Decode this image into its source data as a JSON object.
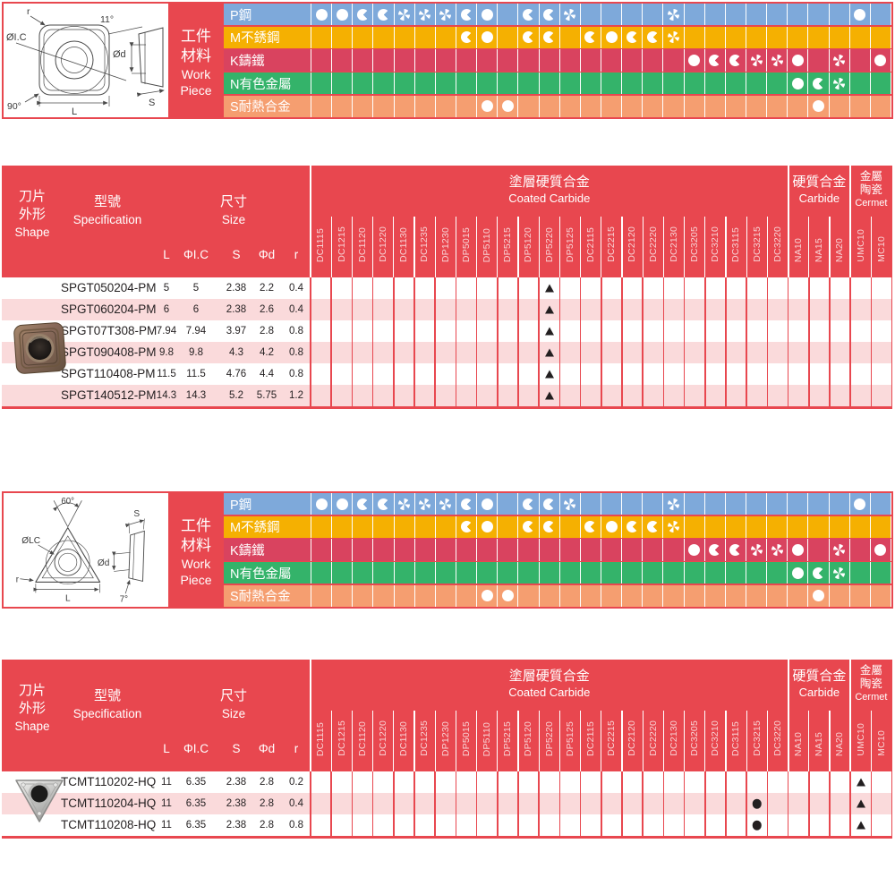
{
  "colors": {
    "red": "#e8474f",
    "row_alt": "#fadadb",
    "mark": "#231f20",
    "chart_blue": "#7ea9da",
    "chart_yellow": "#f5b001",
    "chart_crimson": "#d9435f",
    "chart_green": "#34b36a",
    "chart_salmon": "#f59e70"
  },
  "workpiece": {
    "zh1": "工件",
    "zh2": "材料",
    "en1": "Work",
    "en2": "Piece"
  },
  "materials": [
    {
      "label": "P鋼",
      "color": "#7ea9da",
      "cells": [
        "F",
        "F",
        "Q",
        "Q",
        "P",
        "P",
        "P",
        "Q",
        "F",
        "",
        "Q",
        "Q",
        "P",
        "",
        "",
        "",
        "",
        "P",
        "",
        "",
        "",
        "",
        "",
        "",
        "",
        "",
        "F",
        ""
      ]
    },
    {
      "label": "M不銹鋼",
      "color": "#f5b001",
      "cells": [
        "",
        "",
        "",
        "",
        "",
        "",
        "",
        "Q",
        "F",
        "",
        "Q",
        "Q",
        "",
        "Q",
        "F",
        "Q",
        "Q",
        "P",
        "",
        "",
        "",
        "",
        "",
        "",
        "",
        "",
        "",
        ""
      ]
    },
    {
      "label": "K鑄鐵",
      "color": "#d9435f",
      "cells": [
        "",
        "",
        "",
        "",
        "",
        "",
        "",
        "",
        "",
        "",
        "",
        "",
        "",
        "",
        "",
        "",
        "",
        "",
        "F",
        "Q",
        "Q",
        "P",
        "P",
        "F",
        "",
        "P",
        "",
        "F"
      ]
    },
    {
      "label": "N有色金屬",
      "color": "#34b36a",
      "cells": [
        "",
        "",
        "",
        "",
        "",
        "",
        "",
        "",
        "",
        "",
        "",
        "",
        "",
        "",
        "",
        "",
        "",
        "",
        "",
        "",
        "",
        "",
        "",
        "F",
        "Q",
        "P",
        "",
        ""
      ]
    },
    {
      "label": "S耐熱合金",
      "color": "#f59e70",
      "cells": [
        "",
        "",
        "",
        "",
        "",
        "",
        "",
        "",
        "F",
        "F",
        "",
        "",
        "",
        "",
        "",
        "",
        "",
        "",
        "",
        "",
        "",
        "",
        "",
        "",
        "F",
        "",
        "",
        ""
      ]
    }
  ],
  "grade_groups": [
    {
      "zh_lines": [
        "塗層硬質合金"
      ],
      "en": "Coated Carbide",
      "span": 23
    },
    {
      "zh_lines": [
        "硬質合金"
      ],
      "en": "Carbide",
      "span": 3
    },
    {
      "zh_lines": [
        "金屬",
        "陶瓷"
      ],
      "en": "Cermet",
      "span": 2
    }
  ],
  "grade_columns": [
    "DC1115",
    "DC1215",
    "DC1120",
    "DC1220",
    "DC1130",
    "DC1235",
    "DP1230",
    "DP5015",
    "DP5110",
    "DP5215",
    "DP5120",
    "DP5220",
    "DP5125",
    "DC2115",
    "DC2215",
    "DC2120",
    "DC2220",
    "DC2130",
    "DC3205",
    "DC3210",
    "DC3115",
    "DC3215",
    "DC3220",
    "NA10",
    "NA15",
    "NA20",
    "UMC10",
    "MC10"
  ],
  "header": {
    "shape_zh1": "刀片",
    "shape_zh2": "外形",
    "shape_en": "Shape",
    "spec_zh": "型號",
    "spec_en": "Specification",
    "size_zh": "尺寸",
    "size_en": "Size",
    "size_columns": [
      "L",
      "ΦI.C",
      "S",
      "Φd",
      "r"
    ]
  },
  "sections": [
    {
      "drawing": {
        "corner_r": "r",
        "inscribed": "ØI.C",
        "corner_angle": "90°",
        "length": "L",
        "relief_angle": "11°",
        "hole": "Ød",
        "thickness": "S"
      },
      "rows": [
        {
          "spec": "SPGT050204-PM",
          "size": [
            "5",
            "5",
            "2.38",
            "2.2",
            "0.4"
          ],
          "marks": {
            "11": "tri"
          }
        },
        {
          "spec": "SPGT060204-PM",
          "size": [
            "6",
            "6",
            "2.38",
            "2.6",
            "0.4"
          ],
          "marks": {
            "11": "tri"
          }
        },
        {
          "spec": "SPGT07T308-PM",
          "size": [
            "7.94",
            "7.94",
            "3.97",
            "2.8",
            "0.8"
          ],
          "marks": {
            "11": "tri"
          }
        },
        {
          "spec": "SPGT090408-PM",
          "size": [
            "9.8",
            "9.8",
            "4.3",
            "4.2",
            "0.8"
          ],
          "marks": {
            "11": "tri"
          }
        },
        {
          "spec": "SPGT110408-PM",
          "size": [
            "11.5",
            "11.5",
            "4.76",
            "4.4",
            "0.8"
          ],
          "marks": {
            "11": "tri"
          }
        },
        {
          "spec": "SPGT140512-PM",
          "size": [
            "14.3",
            "14.3",
            "5.2",
            "5.75",
            "1.2"
          ],
          "marks": {
            "11": "tri"
          }
        }
      ]
    },
    {
      "drawing": {
        "point_angle": "60°",
        "inscribed": "ØLC",
        "corner_r": "r",
        "length": "L",
        "thickness": "S",
        "hole": "Ød",
        "relief_angle": "7°"
      },
      "rows": [
        {
          "spec": "TCMT110202-HQ",
          "size": [
            "11",
            "6.35",
            "2.38",
            "2.8",
            "0.2"
          ],
          "marks": {
            "26": "tri"
          }
        },
        {
          "spec": "TCMT110204-HQ",
          "size": [
            "11",
            "6.35",
            "2.38",
            "2.8",
            "0.4"
          ],
          "marks": {
            "21": "dot",
            "26": "tri"
          }
        },
        {
          "spec": "TCMT110208-HQ",
          "size": [
            "11",
            "6.35",
            "2.38",
            "2.8",
            "0.8"
          ],
          "marks": {
            "21": "dot",
            "26": "tri"
          }
        }
      ]
    }
  ]
}
